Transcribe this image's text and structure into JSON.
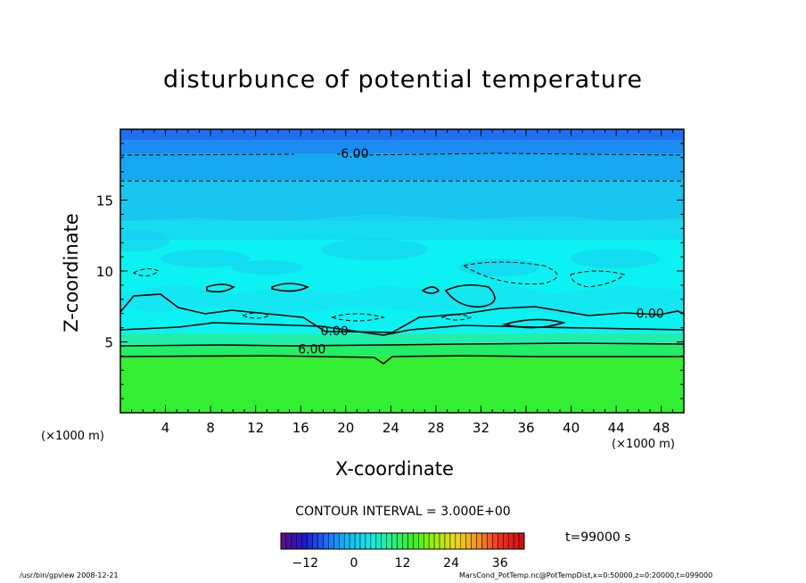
{
  "chart_data": {
    "type": "heatmap",
    "title": "disturbunce of potential temperature",
    "xlabel": "X-coordinate",
    "ylabel": "Z-coordinate",
    "x_unit_left": "(×1000 m)",
    "x_unit_right": "(×1000 m)",
    "xlim": [
      0,
      50
    ],
    "ylim": [
      0,
      20
    ],
    "x_ticks": [
      4,
      8,
      12,
      16,
      20,
      24,
      28,
      32,
      36,
      40,
      44,
      48
    ],
    "y_ticks": [
      5,
      10,
      15
    ],
    "contour_interval_label": "CONTOUR INTERVAL = 3.000E+00",
    "time_label": "t=99000 s",
    "colorbar": {
      "ticks": [
        -12,
        0,
        12,
        24,
        36
      ],
      "range": [
        -18,
        42
      ],
      "colors": [
        "#5a0f8c",
        "#1a1acc",
        "#1e6fff",
        "#12bdf0",
        "#16e8e8",
        "#22f28a",
        "#3cee20",
        "#a0ee10",
        "#f0d81a",
        "#f49020",
        "#ee3020",
        "#d01010"
      ]
    },
    "bands": [
      {
        "z_bottom": 0.0,
        "z_top": 4.0,
        "value": 7.5,
        "color": "#33ee33"
      },
      {
        "z_bottom": 4.0,
        "z_top": 4.8,
        "value": 4.5,
        "color": "#22ee66"
      },
      {
        "z_bottom": 4.8,
        "z_top": 5.6,
        "value": 1.5,
        "color": "#22eeaa"
      },
      {
        "z_bottom": 5.6,
        "z_top": 12.2,
        "value": -1.5,
        "color": "#0cf2f2"
      },
      {
        "z_bottom": 12.2,
        "z_top": 13.5,
        "value": -3.0,
        "color": "#10dcf0"
      },
      {
        "z_bottom": 13.5,
        "z_top": 16.4,
        "value": -4.5,
        "color": "#18c6f0"
      },
      {
        "z_bottom": 16.4,
        "z_top": 18.3,
        "value": -6.0,
        "color": "#16a8f0"
      },
      {
        "z_bottom": 18.3,
        "z_top": 19.2,
        "value": -7.5,
        "color": "#1a8cf2"
      },
      {
        "z_bottom": 19.2,
        "z_top": 20.0,
        "value": -9.0,
        "color": "#1e70f0"
      }
    ],
    "contour_labels": [
      {
        "text": "-6.00",
        "x": 20.6,
        "z": 18.3
      },
      {
        "text": "0.00",
        "x": 19.0,
        "z": 5.8
      },
      {
        "text": "6.00",
        "x": 17.0,
        "z": 4.5
      },
      {
        "text": "0.00",
        "x": 47.0,
        "z": 7.0
      }
    ]
  },
  "footer": {
    "left": "/usr/bin/gpview   2008-12-21",
    "right": "MarsCond_PotTemp.nc@PotTempDist,x=0:50000,z=0:20000,t=099000"
  }
}
